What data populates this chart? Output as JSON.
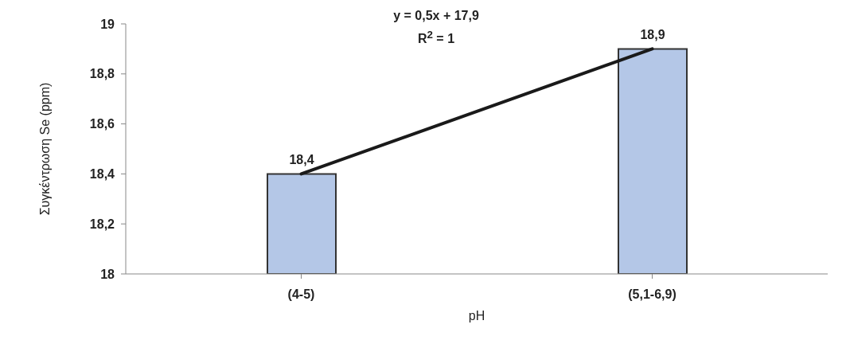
{
  "chart_data": {
    "type": "bar",
    "xlabel": "pH",
    "ylabel": "Συγκέντρωση Se (ppm)",
    "categories": [
      "(4-5)",
      "(5,1-6,9)"
    ],
    "series": [
      {
        "color": "#b4c7e7",
        "values": [
          18.4,
          18.9
        ],
        "value_labels": [
          "18,4",
          "18,9"
        ]
      },
      {
        "type": "line",
        "color": "#1a1a1a",
        "values": [
          18.4,
          18.9
        ]
      }
    ],
    "ylim": [
      18,
      19
    ],
    "yticks": [
      18,
      {
        "value": 18.2,
        "label": "18,2"
      },
      {
        "value": 18.4,
        "label": "18,4"
      },
      {
        "value": 18.6,
        "label": "18,6"
      },
      {
        "value": 18.8,
        "label": "18,8"
      },
      19
    ],
    "annotations": [
      "y = 0,5x + 17,9",
      "R$^{2}$ = 1"
    ],
    "grid": false,
    "legend": false
  }
}
